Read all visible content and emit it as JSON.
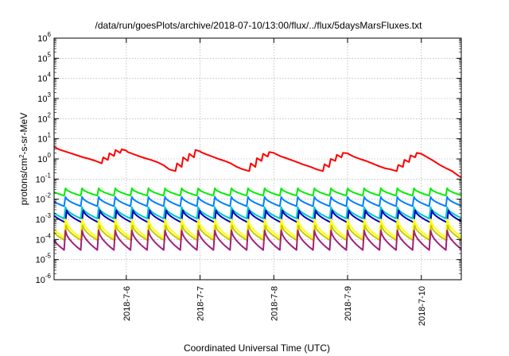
{
  "chart_data": {
    "type": "line",
    "title": "/data/run/goesPlots/archive/2018-07-10/13:00/flux/../flux/5daysMarsFluxes.txt",
    "xlabel": "Coordinated Universal Time (UTC)",
    "ylabel": "protons/cm2-s-sr-MeV",
    "ylabel_parts": {
      "pre": "protons/cm",
      "sup": "2",
      "post": "-s-sr-MeV"
    },
    "xlim": [
      "2018-07-05T00:30",
      "2018-07-10T13:00"
    ],
    "x_ticks": [
      {
        "date": "2018-07-06",
        "label": "2018-7-6"
      },
      {
        "date": "2018-07-07",
        "label": "2018-7-7"
      },
      {
        "date": "2018-07-08",
        "label": "2018-7-8"
      },
      {
        "date": "2018-07-09",
        "label": "2018-7-9"
      },
      {
        "date": "2018-07-10",
        "label": "2018-7-10"
      }
    ],
    "ylim": [
      1e-06,
      1000000.0
    ],
    "y_scale": "log",
    "y_ticks": [
      {
        "base": "10",
        "exp": "-6"
      },
      {
        "base": "10",
        "exp": "-5"
      },
      {
        "base": "10",
        "exp": "-4"
      },
      {
        "base": "10",
        "exp": "-3"
      },
      {
        "base": "10",
        "exp": "-2"
      },
      {
        "base": "10",
        "exp": "-1"
      },
      {
        "base": "10",
        "exp": "0"
      },
      {
        "base": "10",
        "exp": "1"
      },
      {
        "base": "10",
        "exp": "2"
      },
      {
        "base": "10",
        "exp": "3"
      },
      {
        "base": "10",
        "exp": "4"
      },
      {
        "base": "10",
        "exp": "5"
      },
      {
        "base": "10",
        "exp": "6"
      }
    ],
    "grid": true,
    "legend": "none",
    "series": [
      {
        "color": "#ff0000",
        "x": [
          "2018-07-05T00:30",
          "2018-07-05T02:00",
          "2018-07-05T04:00",
          "2018-07-05T06:00",
          "2018-07-05T08:00",
          "2018-07-05T10:00",
          "2018-07-05T12:00",
          "2018-07-05T14:00",
          "2018-07-05T16:00",
          "2018-07-05T16:30",
          "2018-07-05T18:00",
          "2018-07-05T18:30",
          "2018-07-05T20:00",
          "2018-07-05T20:30",
          "2018-07-05T22:00",
          "2018-07-05T22:30",
          "2018-07-06T00:00",
          "2018-07-06T00:30",
          "2018-07-06T02:00",
          "2018-07-06T04:00",
          "2018-07-06T06:00",
          "2018-07-06T08:00",
          "2018-07-06T10:00",
          "2018-07-06T12:00",
          "2018-07-06T14:00",
          "2018-07-06T16:00",
          "2018-07-06T16:30",
          "2018-07-06T18:00",
          "2018-07-06T18:30",
          "2018-07-06T20:00",
          "2018-07-06T20:30",
          "2018-07-06T22:00",
          "2018-07-06T22:30",
          "2018-07-07T00:00",
          "2018-07-07T00:30",
          "2018-07-07T02:00",
          "2018-07-07T04:00",
          "2018-07-07T06:00",
          "2018-07-07T08:00",
          "2018-07-07T10:00",
          "2018-07-07T12:00",
          "2018-07-07T14:00",
          "2018-07-07T16:00",
          "2018-07-07T16:30",
          "2018-07-07T18:00",
          "2018-07-07T18:30",
          "2018-07-07T20:00",
          "2018-07-07T20:30",
          "2018-07-07T22:00",
          "2018-07-07T22:30",
          "2018-07-08T00:00",
          "2018-07-08T00:30",
          "2018-07-08T02:00",
          "2018-07-08T04:00",
          "2018-07-08T06:00",
          "2018-07-08T08:00",
          "2018-07-08T10:00",
          "2018-07-08T12:00",
          "2018-07-08T14:00",
          "2018-07-08T16:00",
          "2018-07-08T16:30",
          "2018-07-08T18:00",
          "2018-07-08T18:30",
          "2018-07-08T20:00",
          "2018-07-08T20:30",
          "2018-07-08T22:00",
          "2018-07-08T22:30",
          "2018-07-09T00:00",
          "2018-07-09T00:30",
          "2018-07-09T02:00",
          "2018-07-09T04:00",
          "2018-07-09T06:00",
          "2018-07-09T08:00",
          "2018-07-09T10:00",
          "2018-07-09T12:00",
          "2018-07-09T14:00",
          "2018-07-09T16:00",
          "2018-07-09T16:30",
          "2018-07-09T18:00",
          "2018-07-09T18:30",
          "2018-07-09T20:00",
          "2018-07-09T20:30",
          "2018-07-09T22:00",
          "2018-07-09T22:30",
          "2018-07-10T00:00",
          "2018-07-10T00:30",
          "2018-07-10T02:00",
          "2018-07-10T04:00",
          "2018-07-10T06:00",
          "2018-07-10T08:00",
          "2018-07-10T10:00",
          "2018-07-10T12:00",
          "2018-07-10T13:00"
        ],
        "values": [
          4.0,
          3.0,
          2.4,
          1.9,
          1.5,
          1.2,
          1.0,
          0.8,
          0.6,
          1.2,
          0.9,
          1.9,
          1.4,
          2.8,
          2.0,
          3.0,
          2.6,
          2.2,
          1.8,
          1.4,
          1.1,
          0.9,
          0.7,
          0.5,
          0.3,
          0.25,
          0.6,
          0.4,
          1.2,
          0.8,
          1.8,
          1.2,
          2.8,
          2.4,
          2.1,
          1.7,
          1.3,
          1.0,
          0.8,
          0.6,
          0.4,
          0.3,
          0.25,
          0.6,
          0.4,
          1.1,
          0.8,
          1.8,
          1.3,
          2.2,
          2.0,
          1.8,
          1.4,
          1.1,
          0.85,
          0.65,
          0.5,
          0.4,
          0.3,
          0.25,
          0.55,
          0.4,
          1.0,
          0.8,
          1.6,
          1.2,
          2.0,
          1.9,
          1.7,
          1.3,
          1.0,
          0.8,
          0.6,
          0.45,
          0.35,
          0.3,
          0.25,
          0.5,
          0.4,
          0.9,
          0.7,
          1.5,
          1.2,
          2.0,
          1.8,
          1.6,
          1.2,
          0.8,
          0.5,
          0.35,
          0.25,
          0.15,
          0.12
        ]
      },
      {
        "color": "#00ee00",
        "peak": 0.035,
        "trough": 0.015,
        "period_hours": 5.4,
        "phase_hours": 0.0
      },
      {
        "color": "#0080ff",
        "peak": 0.013,
        "trough": 0.0045,
        "period_hours": 5.4,
        "phase_hours": 0.0
      },
      {
        "color": "#00c8c8",
        "peak": 0.004,
        "trough": 0.0011,
        "period_hours": 5.4,
        "phase_hours": 0.0
      },
      {
        "color": "#0000c0",
        "peak": 0.0028,
        "trough": 0.0007,
        "period_hours": 5.4,
        "phase_hours": 0.4
      },
      {
        "color": "#ffff00",
        "peak": 0.001,
        "trough": 0.00012,
        "period_hours": 5.4,
        "phase_hours": 0.0
      },
      {
        "color": "#c8c800",
        "peak": 0.0005,
        "trough": 9e-05,
        "period_hours": 5.4,
        "phase_hours": 0.2
      },
      {
        "color": "#a02080",
        "peak": 0.00028,
        "trough": 3e-05,
        "period_hours": 5.4,
        "phase_hours": 0.0
      }
    ]
  }
}
